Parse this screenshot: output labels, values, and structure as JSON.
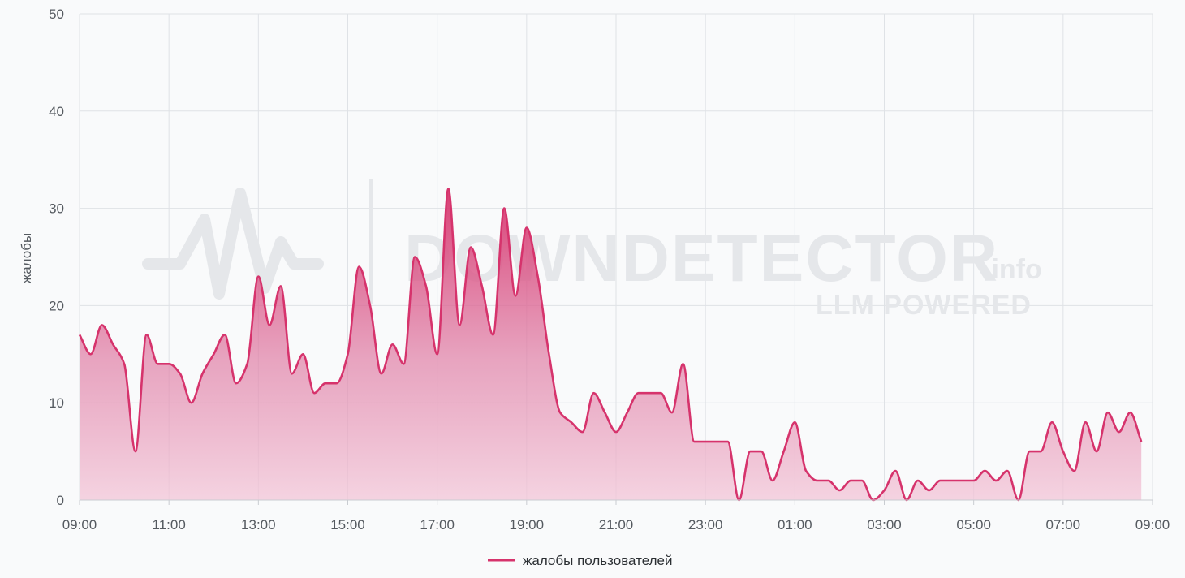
{
  "chart_data": {
    "type": "area",
    "ylabel": "жалобы",
    "xlabel": "",
    "ylim": [
      0,
      50
    ],
    "yticks": [
      0,
      10,
      20,
      30,
      40,
      50
    ],
    "grid": true,
    "legend_position": "bottom-center",
    "x_tick_labels": [
      "09:00",
      "11:00",
      "13:00",
      "15:00",
      "17:00",
      "19:00",
      "21:00",
      "23:00",
      "01:00",
      "03:00",
      "05:00",
      "07:00",
      "09:00"
    ],
    "x_unit": "hours since 09:00",
    "series": [
      {
        "name": "жалобы пользователей",
        "color": "#d6336c",
        "points": [
          [
            0.0,
            17
          ],
          [
            0.25,
            15
          ],
          [
            0.5,
            18
          ],
          [
            0.75,
            16
          ],
          [
            1.0,
            14
          ],
          [
            1.25,
            5
          ],
          [
            1.5,
            17
          ],
          [
            1.75,
            14
          ],
          [
            2.0,
            14
          ],
          [
            2.25,
            13
          ],
          [
            2.5,
            10
          ],
          [
            2.75,
            13
          ],
          [
            3.0,
            15
          ],
          [
            3.25,
            17
          ],
          [
            3.5,
            12
          ],
          [
            3.75,
            14
          ],
          [
            4.0,
            23
          ],
          [
            4.25,
            18
          ],
          [
            4.5,
            22
          ],
          [
            4.75,
            13
          ],
          [
            5.0,
            15
          ],
          [
            5.25,
            11
          ],
          [
            5.5,
            12
          ],
          [
            5.75,
            12
          ],
          [
            6.0,
            15
          ],
          [
            6.25,
            24
          ],
          [
            6.5,
            20
          ],
          [
            6.75,
            13
          ],
          [
            7.0,
            16
          ],
          [
            7.25,
            14
          ],
          [
            7.5,
            25
          ],
          [
            7.75,
            22
          ],
          [
            8.0,
            15
          ],
          [
            8.25,
            32
          ],
          [
            8.5,
            18
          ],
          [
            8.75,
            26
          ],
          [
            9.0,
            22
          ],
          [
            9.25,
            17
          ],
          [
            9.5,
            30
          ],
          [
            9.75,
            21
          ],
          [
            10.0,
            28
          ],
          [
            10.25,
            23
          ],
          [
            10.5,
            15
          ],
          [
            10.75,
            9
          ],
          [
            11.0,
            8
          ],
          [
            11.25,
            7
          ],
          [
            11.5,
            11
          ],
          [
            11.75,
            9
          ],
          [
            12.0,
            7
          ],
          [
            12.25,
            9
          ],
          [
            12.5,
            11
          ],
          [
            12.75,
            11
          ],
          [
            13.0,
            11
          ],
          [
            13.25,
            9
          ],
          [
            13.5,
            14
          ],
          [
            13.75,
            6
          ],
          [
            14.0,
            6
          ],
          [
            14.25,
            6
          ],
          [
            14.5,
            6
          ],
          [
            14.75,
            0
          ],
          [
            15.0,
            5
          ],
          [
            15.25,
            5
          ],
          [
            15.5,
            2
          ],
          [
            15.75,
            5
          ],
          [
            16.0,
            8
          ],
          [
            16.25,
            3
          ],
          [
            16.5,
            2
          ],
          [
            16.75,
            2
          ],
          [
            17.0,
            1
          ],
          [
            17.25,
            2
          ],
          [
            17.5,
            2
          ],
          [
            17.75,
            0
          ],
          [
            18.0,
            1
          ],
          [
            18.25,
            3
          ],
          [
            18.5,
            0
          ],
          [
            18.75,
            2
          ],
          [
            19.0,
            1
          ],
          [
            19.25,
            2
          ],
          [
            19.5,
            2
          ],
          [
            19.75,
            2
          ],
          [
            20.0,
            2
          ],
          [
            20.25,
            3
          ],
          [
            20.5,
            2
          ],
          [
            20.75,
            3
          ],
          [
            21.0,
            0
          ],
          [
            21.25,
            5
          ],
          [
            21.5,
            5
          ],
          [
            21.75,
            8
          ],
          [
            22.0,
            5
          ],
          [
            22.25,
            3
          ],
          [
            22.5,
            8
          ],
          [
            22.75,
            5
          ],
          [
            23.0,
            9
          ],
          [
            23.25,
            7
          ],
          [
            23.5,
            9
          ],
          [
            23.75,
            6
          ]
        ]
      }
    ],
    "watermark": {
      "main": "DOWNDETECTOR",
      "suffix": ".info",
      "sub": "LLM POWERED"
    }
  }
}
